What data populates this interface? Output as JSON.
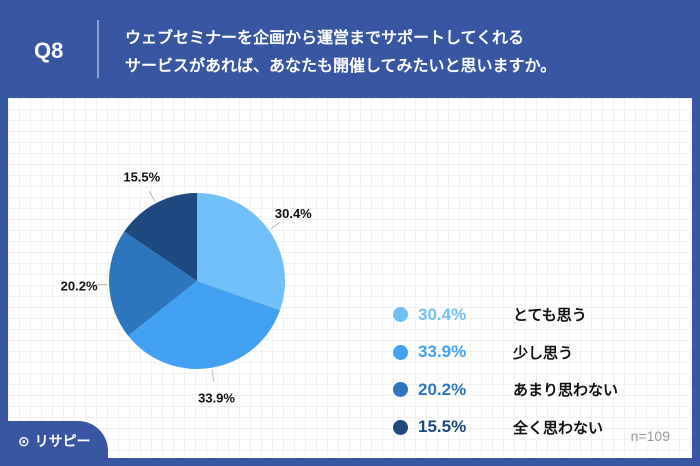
{
  "header": {
    "question": "Q8",
    "title_line1": "ウェブセミナーを企画から運営までサポートしてくれる",
    "title_line2": "サービスがあれば、あなたも開催してみたいと思いますか。"
  },
  "footer": {
    "n": "n=109",
    "logo": "リサピー"
  },
  "chart_data": {
    "type": "pie",
    "start": "top",
    "direction": "clockwise",
    "slices": [
      {
        "label": "とても思う",
        "value": 30.4,
        "display": "30.4%",
        "color": "#72c0f9"
      },
      {
        "label": "少し思う",
        "value": 33.9,
        "display": "33.9%",
        "color": "#42a1f2"
      },
      {
        "label": "あまり思わない",
        "value": 20.2,
        "display": "20.2%",
        "color": "#2d76bd"
      },
      {
        "label": "全く思わない",
        "value": 15.5,
        "display": "15.5%",
        "color": "#1d497f"
      }
    ],
    "legend": "right"
  }
}
